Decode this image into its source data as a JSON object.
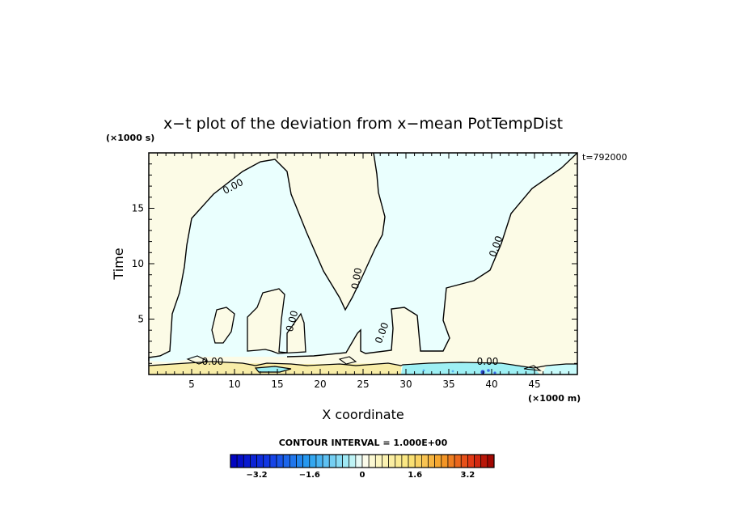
{
  "chart_data": {
    "type": "contour",
    "title": "x−t plot of the deviation from x−mean PotTempDist",
    "time_stamp": "t=792000",
    "xlabel": "X coordinate",
    "ylabel": "Time",
    "x_unit": "(×1000 m)",
    "y_unit": "(×1000 s)",
    "xlim": [
      0,
      50
    ],
    "ylim": [
      0,
      20
    ],
    "x_ticks": [
      "5",
      "10",
      "15",
      "20",
      "25",
      "30",
      "35",
      "40",
      "45"
    ],
    "y_ticks": [
      "5",
      "10",
      "15"
    ],
    "contour_labels": [
      "0.00",
      "0.00",
      "0.00",
      "0.00",
      "0.00",
      "0.00",
      "0.00"
    ],
    "contour_interval_text": "CONTOUR INTERVAL = 1.000E+00",
    "colorbar": {
      "ticks": [
        "−3.2",
        "−1.6",
        "0",
        "1.6",
        "3.2"
      ],
      "range": [
        -4.0,
        4.0
      ],
      "levels": 40
    },
    "colors": {
      "positive_fill": "#fcfbe6",
      "negative_fill": "#eafffe",
      "warm_strip": "#f8eda8",
      "cold_strip": "#9ef0f4"
    }
  }
}
